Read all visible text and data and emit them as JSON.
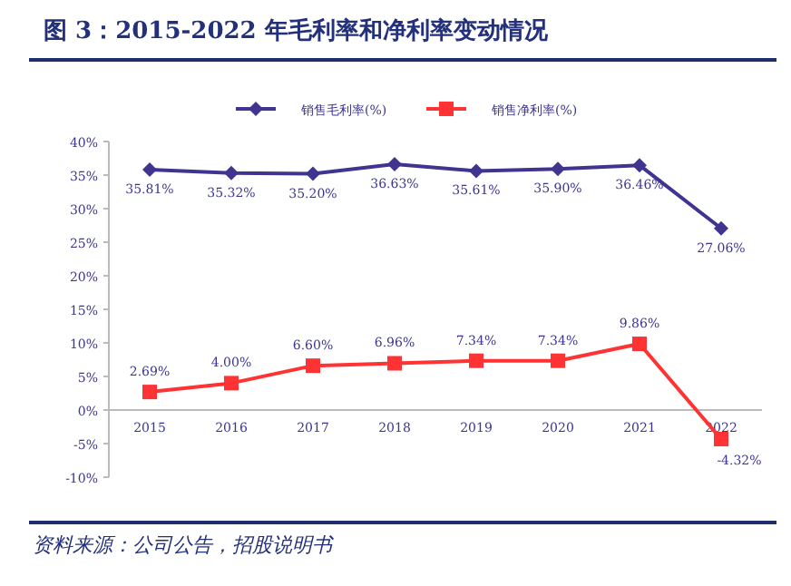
{
  "chart_data": {
    "type": "line",
    "title": "图 3：2015-2022 年毛利率和净利率变动情况",
    "categories": [
      "2015",
      "2016",
      "2017",
      "2018",
      "2019",
      "2020",
      "2021",
      "2022"
    ],
    "series": [
      {
        "name": "销售毛利率(%)",
        "color": "#3f3590",
        "marker": "diamond",
        "values": [
          35.81,
          35.32,
          35.2,
          36.63,
          35.61,
          35.9,
          36.46,
          27.06
        ],
        "value_labels": [
          "35.81%",
          "35.32%",
          "35.20%",
          "36.63%",
          "35.61%",
          "35.90%",
          "36.46%",
          "27.06%"
        ]
      },
      {
        "name": "销售净利率(%)",
        "color": "#ff3333",
        "marker": "square",
        "values": [
          2.69,
          4.0,
          6.6,
          6.96,
          7.34,
          7.34,
          9.86,
          -4.32
        ],
        "value_labels": [
          "2.69%",
          "4.00%",
          "6.60%",
          "6.96%",
          "7.34%",
          "7.34%",
          "9.86%",
          "-4.32%"
        ]
      }
    ],
    "ylim": [
      -10,
      40
    ],
    "yticks": [
      {
        "value": -10,
        "label": "-10%"
      },
      {
        "value": -5,
        "label": "-5%"
      },
      {
        "value": 0,
        "label": "0%"
      },
      {
        "value": 5,
        "label": "5%"
      },
      {
        "value": 10,
        "label": "10%"
      },
      {
        "value": 15,
        "label": "15%"
      },
      {
        "value": 20,
        "label": "20%"
      },
      {
        "value": 25,
        "label": "25%"
      },
      {
        "value": 30,
        "label": "30%"
      },
      {
        "value": 35,
        "label": "35%"
      },
      {
        "value": 40,
        "label": "40%"
      }
    ],
    "legend": "top",
    "grid": false,
    "annotations": [
      "资料来源：公司公告，招股说明书"
    ]
  }
}
